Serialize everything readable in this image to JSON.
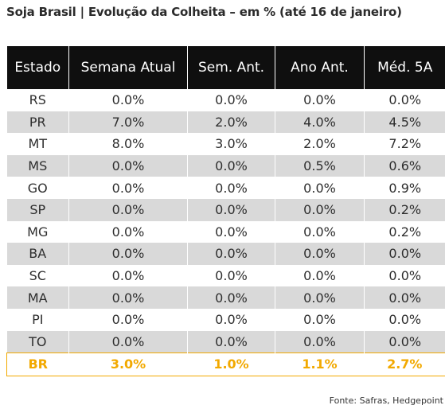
{
  "title": "Soja Brasil | Evolução da Colheita – em % (até 16 de janeiro)",
  "table": {
    "headers": [
      "Estado",
      "Semana Atual",
      "Sem. Ant.",
      "Ano Ant.",
      "Méd. 5A"
    ],
    "rows": [
      [
        "RS",
        "0.0%",
        "0.0%",
        "0.0%",
        "0.0%"
      ],
      [
        "PR",
        "7.0%",
        "2.0%",
        "4.0%",
        "4.5%"
      ],
      [
        "MT",
        "8.0%",
        "3.0%",
        "2.0%",
        "7.2%"
      ],
      [
        "MS",
        "0.0%",
        "0.0%",
        "0.5%",
        "0.6%"
      ],
      [
        "GO",
        "0.0%",
        "0.0%",
        "0.0%",
        "0.9%"
      ],
      [
        "SP",
        "0.0%",
        "0.0%",
        "0.0%",
        "0.2%"
      ],
      [
        "MG",
        "0.0%",
        "0.0%",
        "0.0%",
        "0.2%"
      ],
      [
        "BA",
        "0.0%",
        "0.0%",
        "0.0%",
        "0.0%"
      ],
      [
        "SC",
        "0.0%",
        "0.0%",
        "0.0%",
        "0.0%"
      ],
      [
        "MA",
        "0.0%",
        "0.0%",
        "0.0%",
        "0.0%"
      ],
      [
        "PI",
        "0.0%",
        "0.0%",
        "0.0%",
        "0.0%"
      ],
      [
        "TO",
        "0.0%",
        "0.0%",
        "0.0%",
        "0.0%"
      ]
    ],
    "total": [
      "BR",
      "3.0%",
      "1.0%",
      "1.1%",
      "2.7%"
    ]
  },
  "colors": {
    "header_bg": "#0f0f0f",
    "header_text": "#ffffff",
    "stripe": "#d9d9d9",
    "total_accent": "#f2a900"
  },
  "source": "Fonte: Safras, Hedgepoint"
}
